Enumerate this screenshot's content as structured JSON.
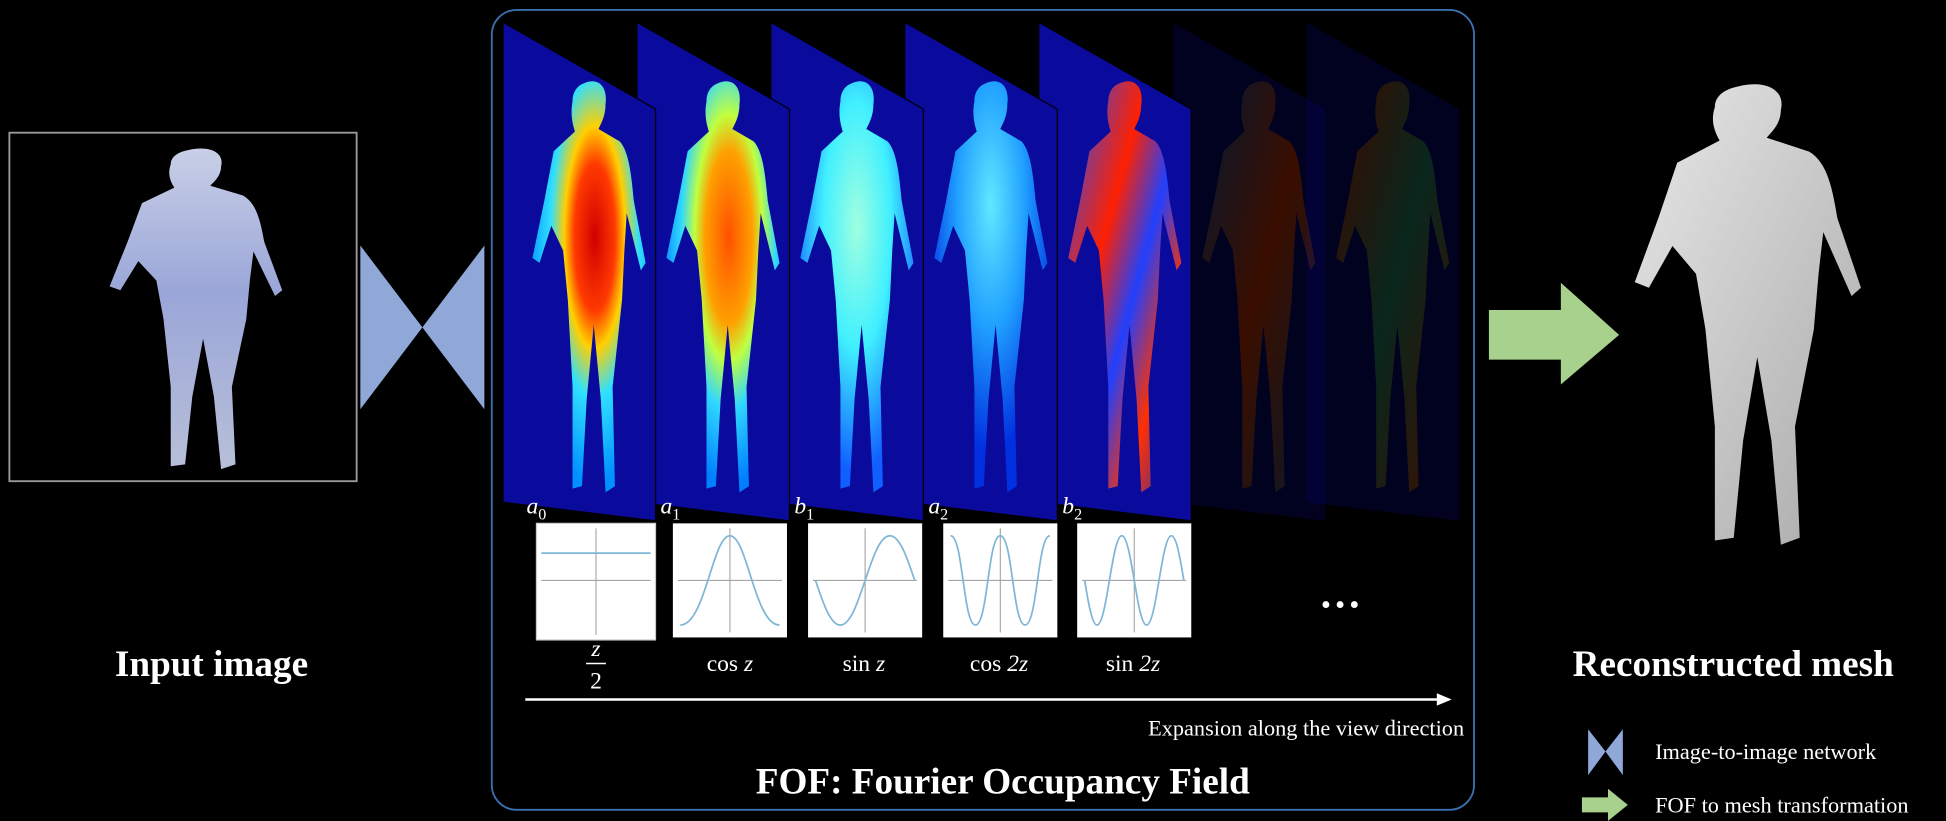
{
  "input_label": "Input image",
  "output_label": "Reconstructed mesh",
  "fof": {
    "title": "FOF: Fourier Occupancy Field",
    "axis_label": "Expansion along the view direction",
    "coefficients": [
      {
        "symbol": "a",
        "subscript": "0"
      },
      {
        "symbol": "a",
        "subscript": "1"
      },
      {
        "symbol": "b",
        "subscript": "1"
      },
      {
        "symbol": "a",
        "subscript": "2"
      },
      {
        "symbol": "b",
        "subscript": "2"
      }
    ],
    "bases": [
      {
        "numerator": "z",
        "denominator": "2"
      },
      {
        "function": "cos",
        "argument": "z"
      },
      {
        "function": "sin",
        "argument": "z"
      },
      {
        "function": "cos",
        "argument": "2z"
      },
      {
        "function": "sin",
        "argument": "2z"
      }
    ],
    "ellipsis": "…"
  },
  "legend": [
    {
      "label": "Image-to-image network"
    },
    {
      "label": "FOF to mesh transformation"
    }
  ]
}
